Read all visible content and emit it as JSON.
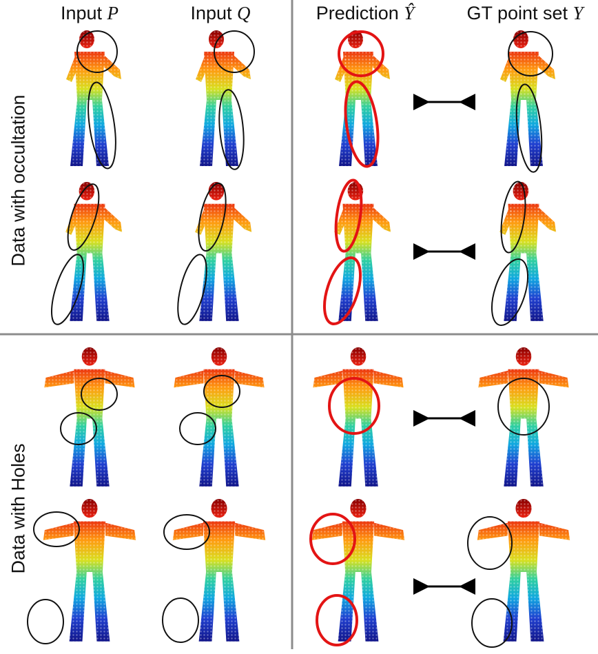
{
  "headers": {
    "input_p_prefix": "Input ",
    "input_p_symbol": "P",
    "input_q_prefix": "Input ",
    "input_q_symbol": "Q",
    "prediction_prefix": "Prediction ",
    "prediction_symbol": "Ŷ",
    "gt_prefix": "GT point set ",
    "gt_symbol": "Y"
  },
  "row_labels": {
    "occlusion": "Data with occultation",
    "holes": "Data with Holes"
  },
  "colors": {
    "divider": "#8c8c8c",
    "input_circle": "#111111",
    "prediction_circle": "#e31414",
    "arrow": "#000000"
  }
}
